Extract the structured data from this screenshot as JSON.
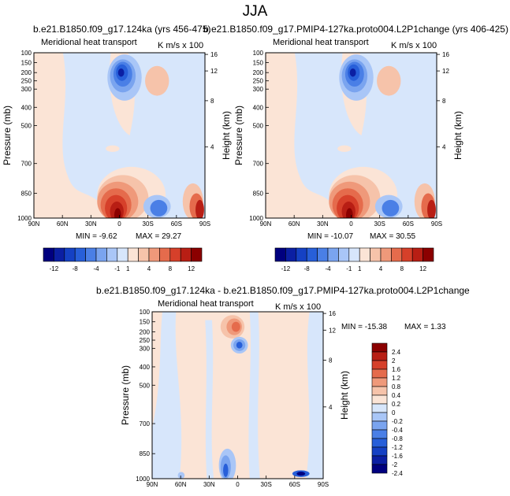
{
  "page": {
    "title": "JJA"
  },
  "panels": [
    {
      "case_title": "b.e21.B1850.f09_g17.124ka (yrs 456-475)",
      "left_label": "Meridional heat transport",
      "right_label": "K m/s x 100",
      "min_text": "MIN =  -9.62",
      "max_text": "MAX =  29.27"
    },
    {
      "case_title": "b.e21.B1850.f09_g17.PMIP4-127ka.proto004.L2P1change (yrs 406-425)",
      "left_label": "Meridional heat transport",
      "right_label": "K m/s x 100",
      "min_text": "MIN = -10.07",
      "max_text": "MAX =  30.55"
    },
    {
      "case_title": "b.e21.B1850.f09_g17.124ka - b.e21.B1850.f09_g17.PMIP4-127ka.proto004.L2P1change",
      "left_label": "Meridional heat transport",
      "right_label": "K m/s x 100",
      "min_text": "MIN = -15.38",
      "max_text": "MAX =   1.33"
    }
  ],
  "colors": {
    "scale": [
      "#00007f",
      "#0b1fa3",
      "#1541c4",
      "#275fd9",
      "#4a7fe6",
      "#7aa4ef",
      "#a9c6f7",
      "#d7e6fb",
      "#fbe4d6",
      "#f6c3aa",
      "#ef997a",
      "#e56b4c",
      "#d6402a",
      "#b81e14",
      "#8b0000"
    ]
  },
  "chart_data": [
    {
      "type": "heatmap",
      "title": "b.e21.B1850.f09_g17.124ka (yrs 456-475)",
      "ylabel": "Pressure (mb)",
      "y2label": "Height (km)",
      "x_ticks": [
        "90N",
        "60N",
        "30N",
        "0",
        "30S",
        "60S",
        "90S"
      ],
      "y_ticks": [
        "100",
        "150",
        "200",
        "250",
        "300",
        "400",
        "500",
        "700",
        "850",
        "1000"
      ],
      "y2_ticks": [
        "16",
        "12",
        "8",
        "4"
      ],
      "min": -9.62,
      "max": 29.27,
      "units": "K m/s x 100"
    },
    {
      "type": "heatmap",
      "title": "b.e21.B1850.f09_g17.PMIP4-127ka.proto004.L2P1change (yrs 406-425)",
      "ylabel": "Pressure (mb)",
      "y2label": "Height (km)",
      "x_ticks": [
        "90N",
        "60N",
        "30N",
        "0",
        "30S",
        "60S",
        "90S"
      ],
      "y_ticks": [
        "100",
        "150",
        "200",
        "250",
        "300",
        "400",
        "500",
        "700",
        "850",
        "1000"
      ],
      "y2_ticks": [
        "16",
        "12",
        "8",
        "4"
      ],
      "min": -10.07,
      "max": 30.55,
      "units": "K m/s x 100"
    },
    {
      "type": "heatmap",
      "title": "b.e21.B1850.f09_g17.124ka - b.e21.B1850.f09_g17.PMIP4-127ka.proto004.L2P1change",
      "ylabel": "Pressure (mb)",
      "y2label": "Height (km)",
      "x_ticks": [
        "90N",
        "60N",
        "30N",
        "0",
        "30S",
        "60S",
        "90S"
      ],
      "y_ticks": [
        "100",
        "150",
        "200",
        "250",
        "300",
        "400",
        "500",
        "700",
        "850",
        "1000"
      ],
      "y2_ticks": [
        "16",
        "12",
        "8",
        "4"
      ],
      "min": -15.38,
      "max": 1.33,
      "units": "K m/s x 100"
    }
  ],
  "colorbar_top": {
    "labels": [
      "-12",
      "-8",
      "-4",
      "-1",
      "1",
      "4",
      "8",
      "12"
    ]
  },
  "colorbar_diff": {
    "labels": [
      "2.4",
      "2",
      "1.6",
      "1.2",
      "0.8",
      "0.4",
      "0.2",
      "0",
      "-0.2",
      "-0.4",
      "-0.8",
      "-1.2",
      "-1.6",
      "-2",
      "-2.4"
    ]
  }
}
